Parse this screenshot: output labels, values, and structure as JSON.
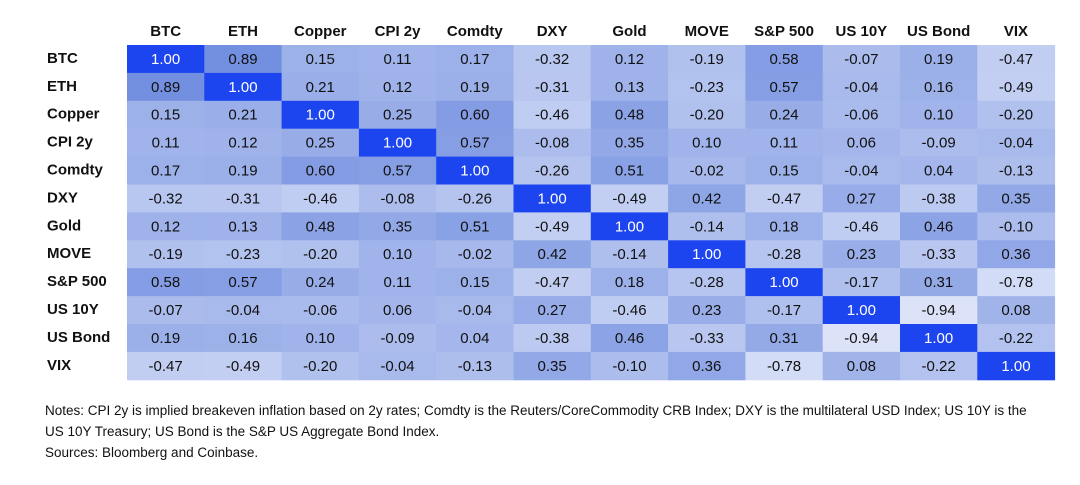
{
  "chart_data": {
    "type": "heatmap",
    "columns": [
      "BTC",
      "ETH",
      "Copper",
      "CPI 2y",
      "Comdty",
      "DXY",
      "Gold",
      "MOVE",
      "S&P 500",
      "US 10Y",
      "US Bond",
      "VIX"
    ],
    "rows": [
      "BTC",
      "ETH",
      "Copper",
      "CPI 2y",
      "Comdty",
      "DXY",
      "Gold",
      "MOVE",
      "S&P 500",
      "US 10Y",
      "US Bond",
      "VIX"
    ],
    "values": [
      [
        1,
        0.89,
        0.15,
        0.11,
        0.17,
        -0.32,
        0.12,
        -0.19,
        0.58,
        -0.07,
        0.19,
        -0.47
      ],
      [
        0.89,
        1,
        0.21,
        0.12,
        0.19,
        -0.31,
        0.13,
        -0.23,
        0.57,
        -0.04,
        0.16,
        -0.49
      ],
      [
        0.15,
        0.21,
        1,
        0.25,
        0.6,
        -0.46,
        0.48,
        -0.2,
        0.24,
        -0.06,
        0.1,
        -0.2
      ],
      [
        0.11,
        0.12,
        0.25,
        1,
        0.57,
        -0.08,
        0.35,
        0.1,
        0.11,
        0.06,
        -0.09,
        -0.04
      ],
      [
        0.17,
        0.19,
        0.6,
        0.57,
        1,
        -0.26,
        0.51,
        -0.02,
        0.15,
        -0.04,
        0.04,
        -0.13
      ],
      [
        -0.32,
        -0.31,
        -0.46,
        -0.08,
        -0.26,
        1,
        -0.49,
        0.42,
        -0.47,
        0.27,
        -0.38,
        0.35
      ],
      [
        0.12,
        0.13,
        0.48,
        0.35,
        0.51,
        -0.49,
        1,
        -0.14,
        0.18,
        -0.46,
        0.46,
        -0.1
      ],
      [
        -0.19,
        -0.23,
        -0.2,
        0.1,
        -0.02,
        0.42,
        -0.14,
        1,
        -0.28,
        0.23,
        -0.33,
        0.36
      ],
      [
        0.58,
        0.57,
        0.24,
        0.11,
        0.15,
        -0.47,
        0.18,
        -0.28,
        1,
        -0.17,
        0.31,
        -0.78
      ],
      [
        -0.07,
        -0.04,
        -0.06,
        0.06,
        -0.04,
        0.27,
        -0.46,
        0.23,
        -0.17,
        1,
        -0.94,
        0.08
      ],
      [
        0.19,
        0.16,
        0.1,
        -0.09,
        0.04,
        -0.38,
        0.46,
        -0.33,
        0.31,
        -0.94,
        1,
        -0.22
      ],
      [
        -0.47,
        -0.49,
        -0.2,
        -0.04,
        -0.13,
        0.35,
        -0.1,
        0.36,
        -0.78,
        0.08,
        -0.22,
        1
      ]
    ],
    "value_labels": [
      [
        "1.00",
        "0.89",
        "0.15",
        "0.11",
        "0.17",
        "-0.32",
        "0.12",
        "-0.19",
        "0.58",
        "-0.07",
        "0.19",
        "-0.47"
      ],
      [
        "0.89",
        "1.00",
        "0.21",
        "0.12",
        "0.19",
        "-0.31",
        "0.13",
        "-0.23",
        "0.57",
        "-0.04",
        "0.16",
        "-0.49"
      ],
      [
        "0.15",
        "0.21",
        "1.00",
        "0.25",
        "0.60",
        "-0.46",
        "0.48",
        "-0.20",
        "0.24",
        "-0.06",
        "0.10",
        "-0.20"
      ],
      [
        "0.11",
        "0.12",
        "0.25",
        "1.00",
        "0.57",
        "-0.08",
        "0.35",
        "0.10",
        "0.11",
        "0.06",
        "-0.09",
        "-0.04"
      ],
      [
        "0.17",
        "0.19",
        "0.60",
        "0.57",
        "1.00",
        "-0.26",
        "0.51",
        "-0.02",
        "0.15",
        "-0.04",
        "0.04",
        "-0.13"
      ],
      [
        "-0.32",
        "-0.31",
        "-0.46",
        "-0.08",
        "-0.26",
        "1.00",
        "-0.49",
        "0.42",
        "-0.47",
        "0.27",
        "-0.38",
        "0.35"
      ],
      [
        "0.12",
        "0.13",
        "0.48",
        "0.35",
        "0.51",
        "-0.49",
        "1.00",
        "-0.14",
        "0.18",
        "-0.46",
        "0.46",
        "-0.10"
      ],
      [
        "-0.19",
        "-0.23",
        "-0.20",
        "0.10",
        "-0.02",
        "0.42",
        "-0.14",
        "1.00",
        "-0.28",
        "0.23",
        "-0.33",
        "0.36"
      ],
      [
        "0.58",
        "0.57",
        "0.24",
        "0.11",
        "0.15",
        "-0.47",
        "0.18",
        "-0.28",
        "1.00",
        "-0.17",
        "0.31",
        "-0.78"
      ],
      [
        "-0.07",
        "-0.04",
        "-0.06",
        "0.06",
        "-0.04",
        "0.27",
        "-0.46",
        "0.23",
        "-0.17",
        "1.00",
        "-0.94",
        "0.08"
      ],
      [
        "0.19",
        "0.16",
        "0.10",
        "-0.09",
        "0.04",
        "-0.38",
        "0.46",
        "-0.33",
        "0.31",
        "-0.94",
        "1.00",
        "-0.22"
      ],
      [
        "-0.47",
        "-0.49",
        "-0.20",
        "-0.04",
        "-0.13",
        "0.35",
        "-0.10",
        "0.36",
        "-0.78",
        "0.08",
        "-0.22",
        "1.00"
      ]
    ],
    "colors": [
      "#dfe6f9",
      "#6d8ade",
      "#1c45f0"
    ],
    "notes": "Notes: CPI 2y is implied breakeven inflation based on 2y rates; Comdty is the Reuters/CoreCommodity CRB Index; DXY is the multilateral USD Index; US 10Y is the US 10Y Treasury; US Bond is the S&P US Aggregate Bond Index.",
    "sources": "Sources: Bloomberg and Coinbase."
  }
}
